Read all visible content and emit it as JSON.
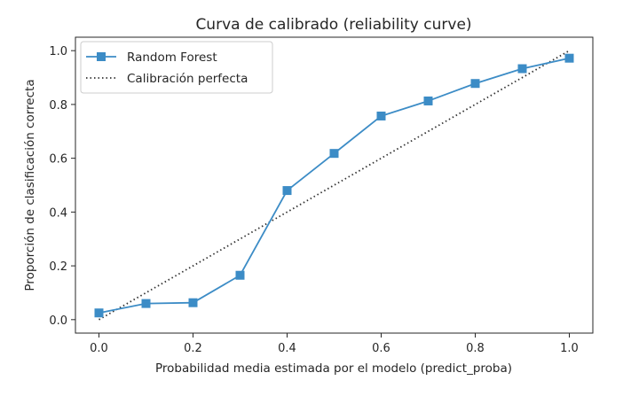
{
  "chart_data": {
    "type": "line",
    "title": "Curva de calibrado (reliability curve)",
    "xlabel": "Probabilidad media estimada por el modelo (predict_proba)",
    "ylabel": "Proporción de clasificación correcta",
    "xlim": [
      -0.05,
      1.05
    ],
    "ylim": [
      -0.05,
      1.05
    ],
    "xticks": [
      "0.0",
      "0.2",
      "0.4",
      "0.6",
      "0.8",
      "1.0"
    ],
    "yticks": [
      "0.0",
      "0.2",
      "0.4",
      "0.6",
      "0.8",
      "1.0"
    ],
    "grid": false,
    "legend_position": "upper-left",
    "series": [
      {
        "name": "Random Forest",
        "style": "solid",
        "marker": "square",
        "color": "#3c8cc6",
        "x": [
          0.0,
          0.1,
          0.2,
          0.3,
          0.4,
          0.5,
          0.6,
          0.7,
          0.8,
          0.9,
          1.0
        ],
        "y": [
          0.025,
          0.06,
          0.063,
          0.165,
          0.48,
          0.618,
          0.757,
          0.813,
          0.878,
          0.933,
          0.972
        ]
      },
      {
        "name": "Calibración perfecta",
        "style": "dotted",
        "color": "#333333",
        "x": [
          0.0,
          1.0
        ],
        "y": [
          0.0,
          1.0
        ]
      }
    ]
  }
}
